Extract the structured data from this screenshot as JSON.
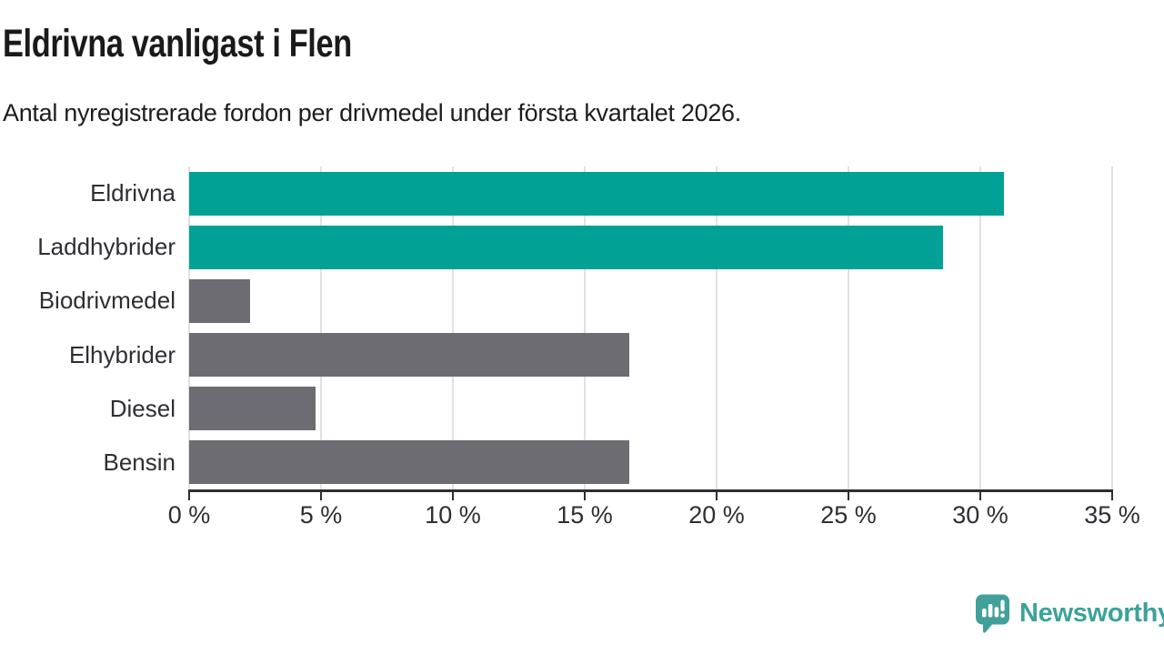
{
  "header": {
    "title": "Eldrivna vanligast i Flen",
    "subtitle": "Antal nyregistrerade fordon per drivmedel under första kvartalet 2026."
  },
  "chart_data": {
    "type": "bar",
    "orientation": "horizontal",
    "title": "Eldrivna vanligast i Flen",
    "subtitle": "Antal nyregistrerade fordon per drivmedel under första kvartalet 2026.",
    "categories": [
      "Eldrivna",
      "Laddhybrider",
      "Biodrivmedel",
      "Elhybrider",
      "Diesel",
      "Bensin"
    ],
    "values": [
      30.9,
      28.6,
      2.3,
      16.7,
      4.8,
      16.7
    ],
    "value_unit": "%",
    "bar_colors": [
      "#02a196",
      "#02a196",
      "#6c6c72",
      "#6c6c72",
      "#6c6c72",
      "#6c6c72"
    ],
    "xlim": [
      0,
      35
    ],
    "x_ticks": [
      0,
      5,
      10,
      15,
      20,
      25,
      30,
      35
    ],
    "x_tick_suffix": " %",
    "grid": true,
    "legend": false
  },
  "colors": {
    "highlight": "#02a196",
    "neutral": "#6c6c72",
    "gridline": "#e1e1e4",
    "axis": "#2e2e33",
    "title_text": "#1a1a1a",
    "label_text": "#2e2e33",
    "brand": "#3ca29a"
  },
  "footer": {
    "brand": "Newsworthy"
  }
}
